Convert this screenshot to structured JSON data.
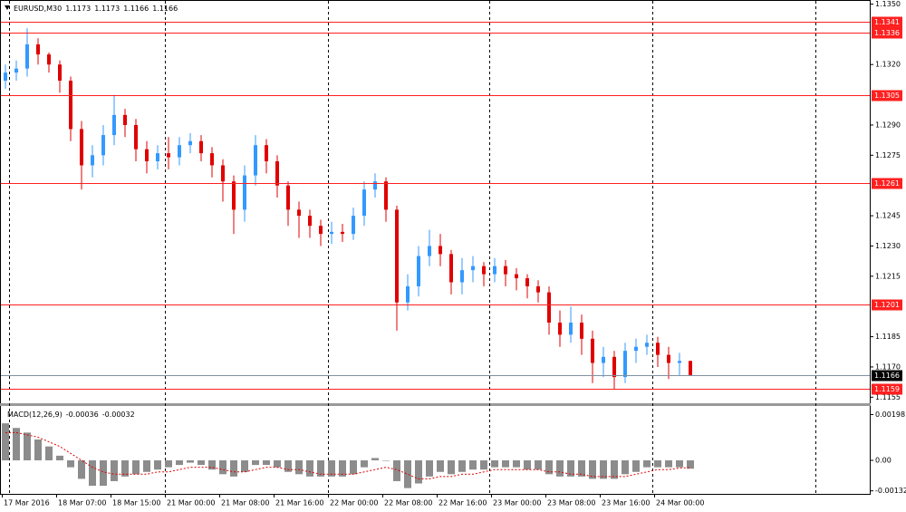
{
  "chart_data": [
    {
      "type": "candlestick",
      "title": "EURUSD,M30",
      "header_values": [
        1.1173,
        1.1173,
        1.1166,
        1.1166
      ],
      "up_color": "#3399ff",
      "down_color": "#e00000",
      "open": [
        1.1312,
        1.1316,
        1.1318,
        1.133,
        1.1325,
        1.132,
        1.1312,
        1.1288,
        1.127,
        1.1275,
        1.1285,
        1.1295,
        1.129,
        1.1278,
        1.1272,
        1.1276,
        1.1274,
        1.128,
        1.1282,
        1.1276,
        1.127,
        1.1262,
        1.1248,
        1.1265,
        1.128,
        1.1272,
        1.126,
        1.1248,
        1.1245,
        1.124,
        1.1236,
        1.1237,
        1.1236,
        1.1245,
        1.1258,
        1.1262,
        1.1248,
        1.1202,
        1.121,
        1.1225,
        1.123,
        1.1226,
        1.1212,
        1.1218,
        1.122,
        1.1216,
        1.122,
        1.1216,
        1.1214,
        1.121,
        1.1207,
        1.1192,
        1.1186,
        1.1192,
        1.1184,
        1.1172,
        1.1175,
        1.1165,
        1.1178,
        1.118,
        1.1182,
        1.1176,
        1.1172,
        1.1173
      ],
      "high": [
        1.132,
        1.1322,
        1.1338,
        1.1333,
        1.1326,
        1.1322,
        1.1314,
        1.1292,
        1.128,
        1.129,
        1.1305,
        1.1298,
        1.1293,
        1.1282,
        1.128,
        1.1284,
        1.1284,
        1.1286,
        1.1285,
        1.1279,
        1.1273,
        1.1265,
        1.127,
        1.1285,
        1.1283,
        1.1275,
        1.1262,
        1.1252,
        1.1248,
        1.1243,
        1.1242,
        1.1241,
        1.1249,
        1.1262,
        1.1266,
        1.1264,
        1.125,
        1.1216,
        1.123,
        1.1238,
        1.1236,
        1.1228,
        1.1224,
        1.1225,
        1.1222,
        1.1224,
        1.1223,
        1.1219,
        1.1216,
        1.1213,
        1.121,
        1.1198,
        1.12,
        1.1196,
        1.1188,
        1.118,
        1.1178,
        1.1182,
        1.1184,
        1.1186,
        1.1185,
        1.118,
        1.1177,
        1.1173
      ],
      "low": [
        1.1308,
        1.1312,
        1.1314,
        1.132,
        1.1316,
        1.1306,
        1.1282,
        1.1258,
        1.1264,
        1.127,
        1.128,
        1.1284,
        1.1272,
        1.1266,
        1.1268,
        1.1268,
        1.127,
        1.1276,
        1.1272,
        1.1264,
        1.1252,
        1.1236,
        1.1242,
        1.126,
        1.1266,
        1.1254,
        1.124,
        1.1234,
        1.1234,
        1.123,
        1.1231,
        1.1232,
        1.1233,
        1.124,
        1.1254,
        1.1242,
        1.1188,
        1.1198,
        1.1205,
        1.122,
        1.122,
        1.1206,
        1.1206,
        1.1212,
        1.121,
        1.1212,
        1.121,
        1.1208,
        1.1204,
        1.1202,
        1.1186,
        1.118,
        1.1182,
        1.1176,
        1.1162,
        1.1165,
        1.1159,
        1.1162,
        1.1172,
        1.1176,
        1.117,
        1.1164,
        1.1166,
        1.1166
      ],
      "close": [
        1.1316,
        1.1318,
        1.133,
        1.1325,
        1.132,
        1.1312,
        1.1288,
        1.127,
        1.1275,
        1.1285,
        1.1295,
        1.129,
        1.1278,
        1.1272,
        1.1276,
        1.1274,
        1.128,
        1.1282,
        1.1276,
        1.127,
        1.1262,
        1.1248,
        1.1265,
        1.128,
        1.1272,
        1.126,
        1.1248,
        1.1245,
        1.124,
        1.1236,
        1.1237,
        1.1236,
        1.1245,
        1.1258,
        1.1262,
        1.1248,
        1.1202,
        1.121,
        1.1225,
        1.123,
        1.1226,
        1.1212,
        1.1218,
        1.122,
        1.1216,
        1.122,
        1.1216,
        1.1214,
        1.121,
        1.1207,
        1.1192,
        1.1186,
        1.1192,
        1.1184,
        1.1172,
        1.1175,
        1.1165,
        1.1178,
        1.118,
        1.1182,
        1.1176,
        1.1172,
        1.1173,
        1.1166
      ],
      "ylim": [
        1.1152,
        1.1352
      ],
      "yticks": [
        {
          "value": 1.135,
          "label": "1.1350"
        },
        {
          "value": 1.132,
          "label": "1.1320"
        },
        {
          "value": 1.129,
          "label": "1.1290"
        },
        1.1275,
        1.1245,
        {
          "value": 1.123,
          "label": "1.1230"
        },
        1.1215,
        1.1185,
        {
          "value": 1.117,
          "label": "1.1170"
        },
        1.1155
      ],
      "levels": [
        1.1341,
        1.1336,
        1.1305,
        1.1261,
        1.1201,
        1.1159
      ],
      "level_color": "#ff2020",
      "current_price": 1.1166,
      "x_labels": [
        "17 Mar 2016",
        "18 Mar 07:00",
        "18 Mar 15:00",
        "21 Mar 00:00",
        "21 Mar 08:00",
        "21 Mar 16:00",
        "22 Mar 00:00",
        "22 Mar 08:00",
        "22 Mar 16:00",
        "23 Mar 00:00",
        "23 Mar 08:00",
        "23 Mar 16:00",
        "24 Mar 00:00"
      ]
    },
    {
      "type": "macd",
      "title": "MACD(12,26,9)",
      "header_values": [
        -0.00036,
        -0.00032
      ],
      "histogram": {
        "color": "#8c8c8c",
        "values": [
          0.0016,
          0.0014,
          0.0012,
          0.0009,
          0.0006,
          0.0002,
          -0.0003,
          -0.0008,
          -0.0011,
          -0.0011,
          -0.0009,
          -0.0007,
          -0.0006,
          -0.0005,
          -0.0004,
          -0.0003,
          -0.0002,
          -0.0001,
          -0.0002,
          -0.0004,
          -0.0006,
          -0.0007,
          -0.0005,
          -0.0002,
          -0.0002,
          -0.0003,
          -0.0005,
          -0.0006,
          -0.0007,
          -0.0007,
          -0.0007,
          -0.0007,
          -0.0006,
          -0.0003,
          0.0001,
          0.0,
          -0.0009,
          -0.0012,
          -0.001,
          -0.0007,
          -0.0005,
          -0.0006,
          -0.0005,
          -0.0004,
          -0.0004,
          -0.0003,
          -0.0003,
          -0.0003,
          -0.0004,
          -0.0004,
          -0.0006,
          -0.0007,
          -0.0007,
          -0.0007,
          -0.0008,
          -0.0008,
          -0.0008,
          -0.0006,
          -0.0005,
          -0.0003,
          -0.0003,
          -0.0003,
          -0.0003,
          -0.00036
        ]
      },
      "signal": {
        "color": "#e00000",
        "values": [
          0.0012,
          0.0012,
          0.0011,
          0.001,
          0.0008,
          0.0006,
          0.0003,
          0.0,
          -0.0003,
          -0.0005,
          -0.0006,
          -0.0006,
          -0.0006,
          -0.0006,
          -0.0005,
          -0.0005,
          -0.0004,
          -0.0003,
          -0.0003,
          -0.0003,
          -0.0004,
          -0.0005,
          -0.0005,
          -0.0004,
          -0.0003,
          -0.0003,
          -0.0004,
          -0.0004,
          -0.0005,
          -0.0006,
          -0.0006,
          -0.0006,
          -0.0006,
          -0.0005,
          -0.0004,
          -0.0003,
          -0.0004,
          -0.0006,
          -0.0008,
          -0.0008,
          -0.0007,
          -0.0007,
          -0.0006,
          -0.0006,
          -0.0005,
          -0.0004,
          -0.0004,
          -0.0004,
          -0.0004,
          -0.0004,
          -0.0005,
          -0.0005,
          -0.0006,
          -0.0006,
          -0.0007,
          -0.0007,
          -0.0007,
          -0.0007,
          -0.0006,
          -0.0005,
          -0.0004,
          -0.0004,
          -0.00033,
          -0.00032
        ]
      },
      "ylim": [
        -0.00145,
        0.00235
      ],
      "yticks": [
        0.00198,
        {
          "value": 0,
          "label": "0.00"
        },
        -0.00132
      ]
    }
  ]
}
